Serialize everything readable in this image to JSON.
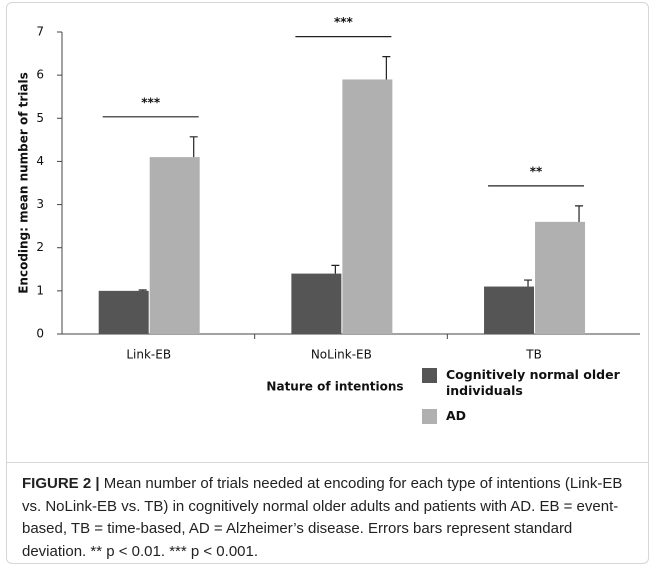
{
  "chart_data": {
    "type": "bar",
    "y_label": "Encoding: mean number of trials",
    "x_label": "Nature of intentions",
    "categories": [
      "Link-EB",
      "NoLink-EB",
      "TB"
    ],
    "series": [
      {
        "name": "Cognitively normal older individuals",
        "color": "#555555",
        "values": [
          1.0,
          1.4,
          1.1
        ],
        "errors": [
          0.02,
          0.19,
          0.15
        ]
      },
      {
        "name": "AD",
        "color": "#b0b0b0",
        "values": [
          4.1,
          5.9,
          2.6
        ],
        "errors": [
          0.47,
          0.53,
          0.37
        ]
      }
    ],
    "significance": [
      "***",
      "***",
      "**"
    ],
    "ylim": [
      0,
      7
    ],
    "yticks": [
      0,
      1,
      2,
      3,
      4,
      5,
      6,
      7
    ]
  },
  "caption": {
    "label": "FIGURE 2 |",
    "text": "Mean number of trials needed at encoding for each type of intentions (Link-EB vs. NoLink-EB vs. TB) in cognitively normal older adults and patients with AD. EB = event-based, TB = time-based, AD = Alzheimer’s disease. Errors bars represent standard deviation. ** p < 0.01. *** p < 0.001."
  }
}
